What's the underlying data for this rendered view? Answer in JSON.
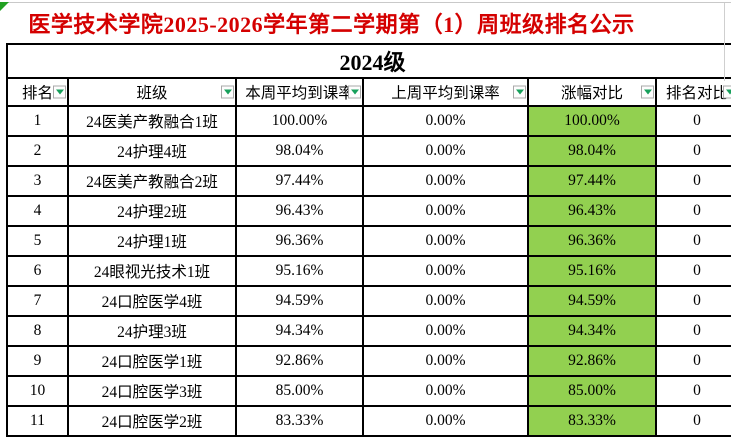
{
  "title": "医学技术学院2025-2026学年第二学期第（1）周班级排名公示",
  "grade_header": "2024级",
  "colors": {
    "title_red": "#d40000",
    "highlight_green": "#92d050",
    "filter_arrow_green": "#18a05c",
    "corner_flag_green": "#21a121",
    "border_black": "#000000"
  },
  "columns": [
    {
      "key": "rank",
      "label": "排名",
      "filter": true
    },
    {
      "key": "class_name",
      "label": "班级",
      "filter": true
    },
    {
      "key": "this_week",
      "label": "本周平均到课率",
      "filter": true
    },
    {
      "key": "last_week",
      "label": "上周平均到课率",
      "filter": true
    },
    {
      "key": "change",
      "label": "涨幅对比",
      "filter": true
    },
    {
      "key": "rank_change",
      "label": "排名对比",
      "filter": true
    }
  ],
  "rows": [
    {
      "rank": "1",
      "class_name": "24医美产教融合1班",
      "this_week": "100.00%",
      "last_week": "0.00%",
      "change": "100.00%",
      "rank_change": "0"
    },
    {
      "rank": "2",
      "class_name": "24护理4班",
      "this_week": "98.04%",
      "last_week": "0.00%",
      "change": "98.04%",
      "rank_change": "0"
    },
    {
      "rank": "3",
      "class_name": "24医美产教融合2班",
      "this_week": "97.44%",
      "last_week": "0.00%",
      "change": "97.44%",
      "rank_change": "0"
    },
    {
      "rank": "4",
      "class_name": "24护理2班",
      "this_week": "96.43%",
      "last_week": "0.00%",
      "change": "96.43%",
      "rank_change": "0"
    },
    {
      "rank": "5",
      "class_name": "24护理1班",
      "this_week": "96.36%",
      "last_week": "0.00%",
      "change": "96.36%",
      "rank_change": "0"
    },
    {
      "rank": "6",
      "class_name": "24眼视光技术1班",
      "this_week": "95.16%",
      "last_week": "0.00%",
      "change": "95.16%",
      "rank_change": "0"
    },
    {
      "rank": "7",
      "class_name": "24口腔医学4班",
      "this_week": "94.59%",
      "last_week": "0.00%",
      "change": "94.59%",
      "rank_change": "0"
    },
    {
      "rank": "8",
      "class_name": "24护理3班",
      "this_week": "94.34%",
      "last_week": "0.00%",
      "change": "94.34%",
      "rank_change": "0"
    },
    {
      "rank": "9",
      "class_name": "24口腔医学1班",
      "this_week": "92.86%",
      "last_week": "0.00%",
      "change": "92.86%",
      "rank_change": "0"
    },
    {
      "rank": "10",
      "class_name": "24口腔医学3班",
      "this_week": "85.00%",
      "last_week": "0.00%",
      "change": "85.00%",
      "rank_change": "0"
    },
    {
      "rank": "11",
      "class_name": "24口腔医学2班",
      "this_week": "83.33%",
      "last_week": "0.00%",
      "change": "83.33%",
      "rank_change": "0"
    }
  ]
}
